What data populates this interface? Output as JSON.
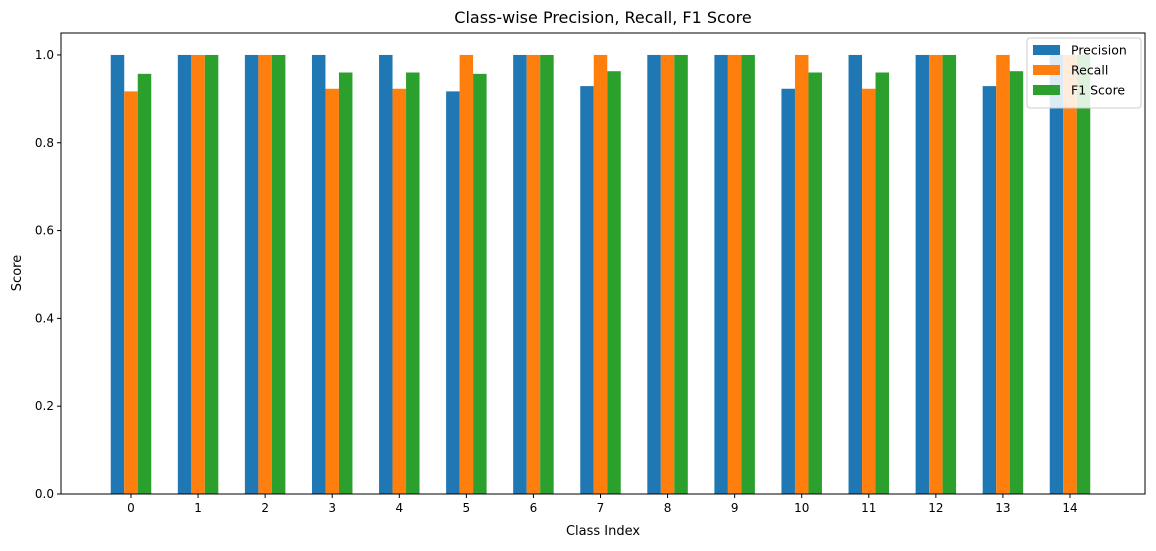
{
  "chart_data": {
    "type": "bar",
    "title": "Class-wise Precision, Recall, F1 Score",
    "xlabel": "Class Index",
    "ylabel": "Score",
    "ylim": [
      0,
      1.05
    ],
    "yticks": [
      "0.0",
      "0.2",
      "0.4",
      "0.6",
      "0.8",
      "1.0"
    ],
    "categories": [
      "0",
      "1",
      "2",
      "3",
      "4",
      "5",
      "6",
      "7",
      "8",
      "9",
      "10",
      "11",
      "12",
      "13",
      "14"
    ],
    "legend_position": "top-right",
    "grid": false,
    "series": [
      {
        "name": "Precision",
        "color": "#1f77b4",
        "values": [
          1.0,
          1.0,
          1.0,
          1.0,
          1.0,
          0.917,
          1.0,
          0.929,
          1.0,
          1.0,
          0.923,
          1.0,
          1.0,
          0.929,
          1.0
        ]
      },
      {
        "name": "Recall",
        "color": "#ff7f0e",
        "values": [
          0.917,
          1.0,
          1.0,
          0.923,
          0.923,
          1.0,
          1.0,
          1.0,
          1.0,
          1.0,
          1.0,
          0.923,
          1.0,
          1.0,
          1.0
        ]
      },
      {
        "name": "F1 Score",
        "color": "#2ca02c",
        "values": [
          0.957,
          1.0,
          1.0,
          0.96,
          0.96,
          0.957,
          1.0,
          0.963,
          1.0,
          1.0,
          0.96,
          0.96,
          1.0,
          0.963,
          1.0
        ]
      }
    ]
  }
}
